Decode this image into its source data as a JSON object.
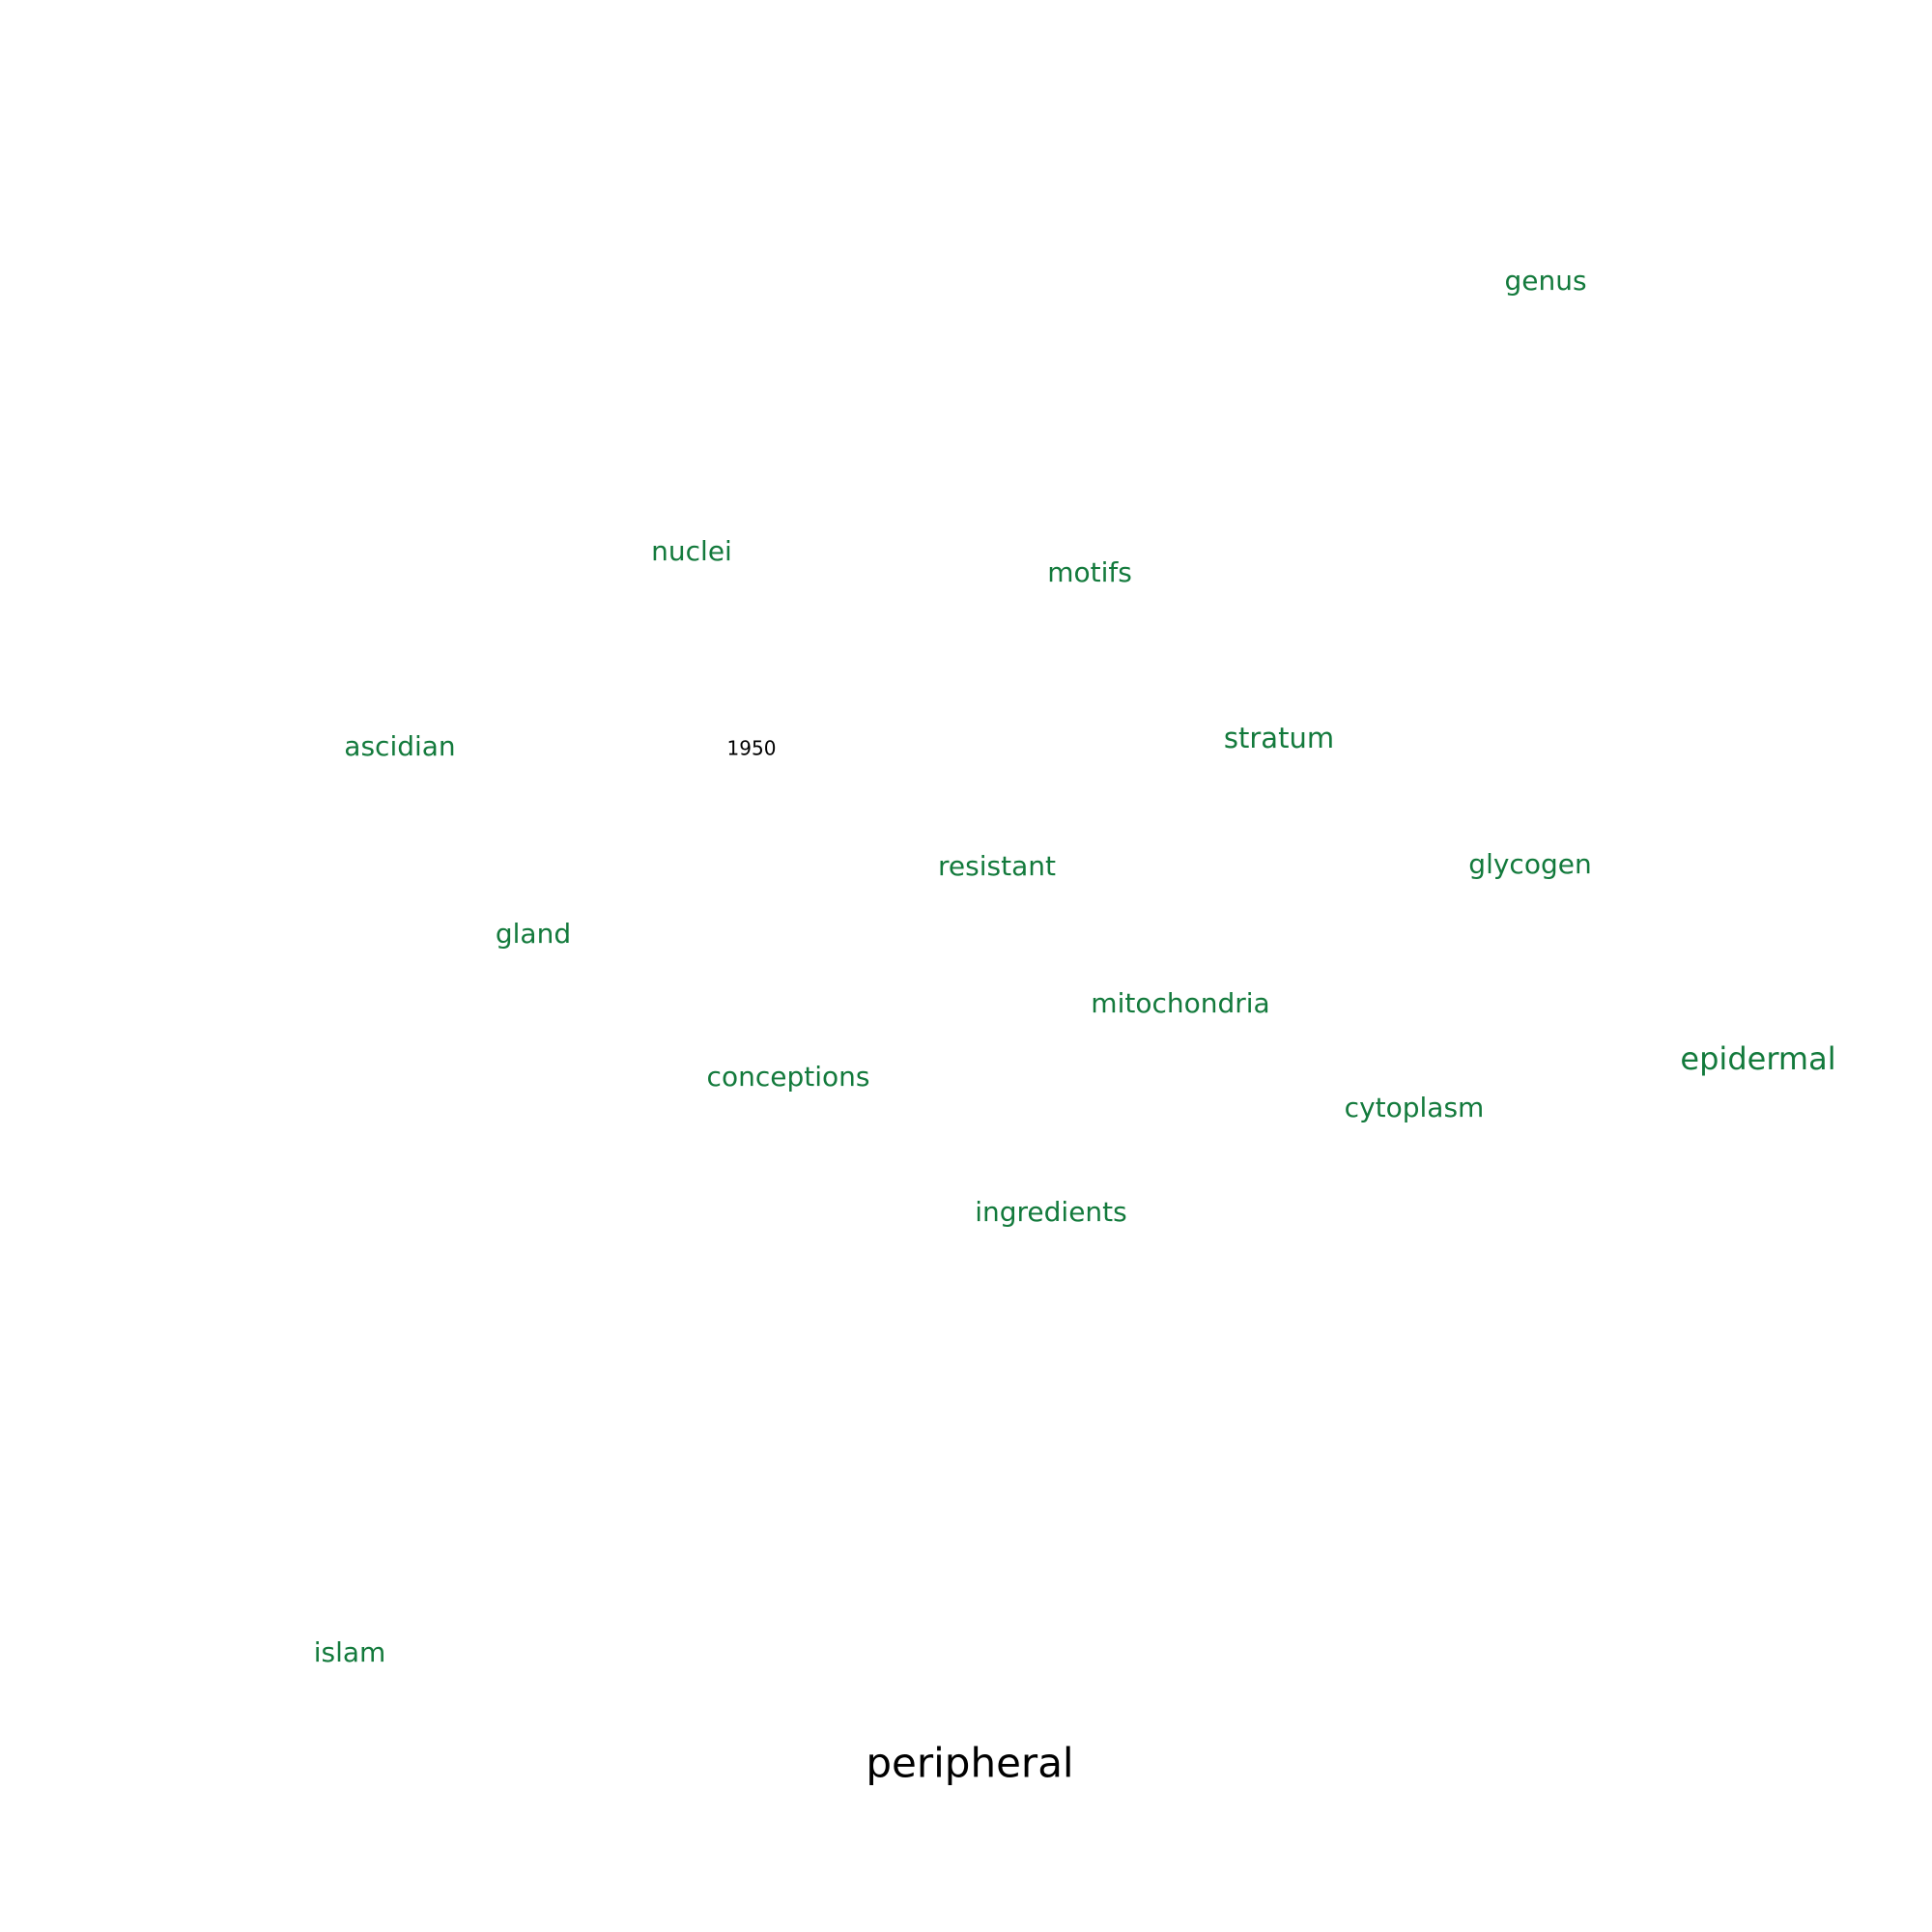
{
  "chart_data": {
    "type": "scatter",
    "x_range": [
      0,
      100
    ],
    "y_range": [
      0,
      100
    ],
    "colors": {
      "neighbor": "#137a3c",
      "query": "#000000",
      "year": "#000000"
    },
    "query_word": {
      "text": "peripheral",
      "x": 50.2,
      "y": 8.6
    },
    "year_label": {
      "text": "1950",
      "x": 38.9,
      "y": 61.2
    },
    "words": [
      {
        "text": "genus",
        "x": 80.0,
        "y": 85.4
      },
      {
        "text": "nuclei",
        "x": 35.8,
        "y": 71.4
      },
      {
        "text": "motifs",
        "x": 56.4,
        "y": 70.3
      },
      {
        "text": "ascidian",
        "x": 20.7,
        "y": 61.3
      },
      {
        "text": "stratum",
        "x": 66.2,
        "y": 61.7
      },
      {
        "text": "resistant",
        "x": 51.6,
        "y": 55.1
      },
      {
        "text": "glycogen",
        "x": 79.2,
        "y": 55.2
      },
      {
        "text": "gland",
        "x": 27.6,
        "y": 51.6
      },
      {
        "text": "mitochondria",
        "x": 61.1,
        "y": 48.0
      },
      {
        "text": "epidermal",
        "x": 91.0,
        "y": 45.1
      },
      {
        "text": "conceptions",
        "x": 40.8,
        "y": 44.2
      },
      {
        "text": "cytoplasm",
        "x": 73.2,
        "y": 42.6
      },
      {
        "text": "ingredients",
        "x": 54.4,
        "y": 37.2
      },
      {
        "text": "islam",
        "x": 18.1,
        "y": 14.4
      }
    ]
  }
}
